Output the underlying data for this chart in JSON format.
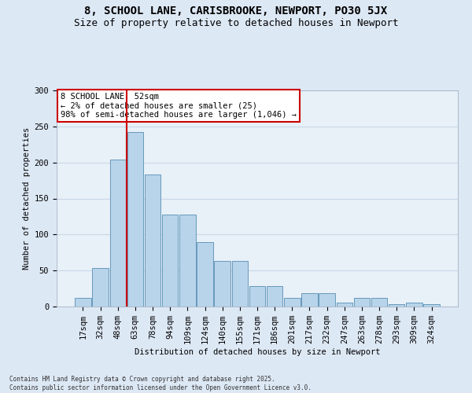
{
  "title1": "8, SCHOOL LANE, CARISBROOKE, NEWPORT, PO30 5JX",
  "title2": "Size of property relative to detached houses in Newport",
  "xlabel": "Distribution of detached houses by size in Newport",
  "ylabel": "Number of detached properties",
  "bar_labels": [
    "17sqm",
    "32sqm",
    "48sqm",
    "63sqm",
    "78sqm",
    "94sqm",
    "109sqm",
    "124sqm",
    "140sqm",
    "155sqm",
    "171sqm",
    "186sqm",
    "201sqm",
    "217sqm",
    "232sqm",
    "247sqm",
    "263sqm",
    "278sqm",
    "293sqm",
    "309sqm",
    "324sqm"
  ],
  "bar_values": [
    12,
    53,
    204,
    242,
    183,
    128,
    128,
    90,
    63,
    63,
    28,
    28,
    12,
    19,
    19,
    5,
    12,
    12,
    3,
    5,
    3
  ],
  "bar_color": "#b8d4ea",
  "bar_edge_color": "#6699bb",
  "vline_color": "#cc0000",
  "vline_xindex": 2.5,
  "annotation_text": "8 SCHOOL LANE: 52sqm\n← 2% of detached houses are smaller (25)\n98% of semi-detached houses are larger (1,046) →",
  "annotation_box_color": "#ffffff",
  "annotation_box_edge": "#cc0000",
  "ylim": [
    0,
    300
  ],
  "yticks": [
    0,
    50,
    100,
    150,
    200,
    250,
    300
  ],
  "footnote": "Contains HM Land Registry data © Crown copyright and database right 2025.\nContains public sector information licensed under the Open Government Licence v3.0.",
  "bg_color": "#dde8f5",
  "plot_bg_color": "#e8f0f8",
  "grid_color": "#c8d8e8",
  "title_fontsize": 10,
  "subtitle_fontsize": 9,
  "axis_fontsize": 7.5,
  "tick_fontsize": 7.5
}
